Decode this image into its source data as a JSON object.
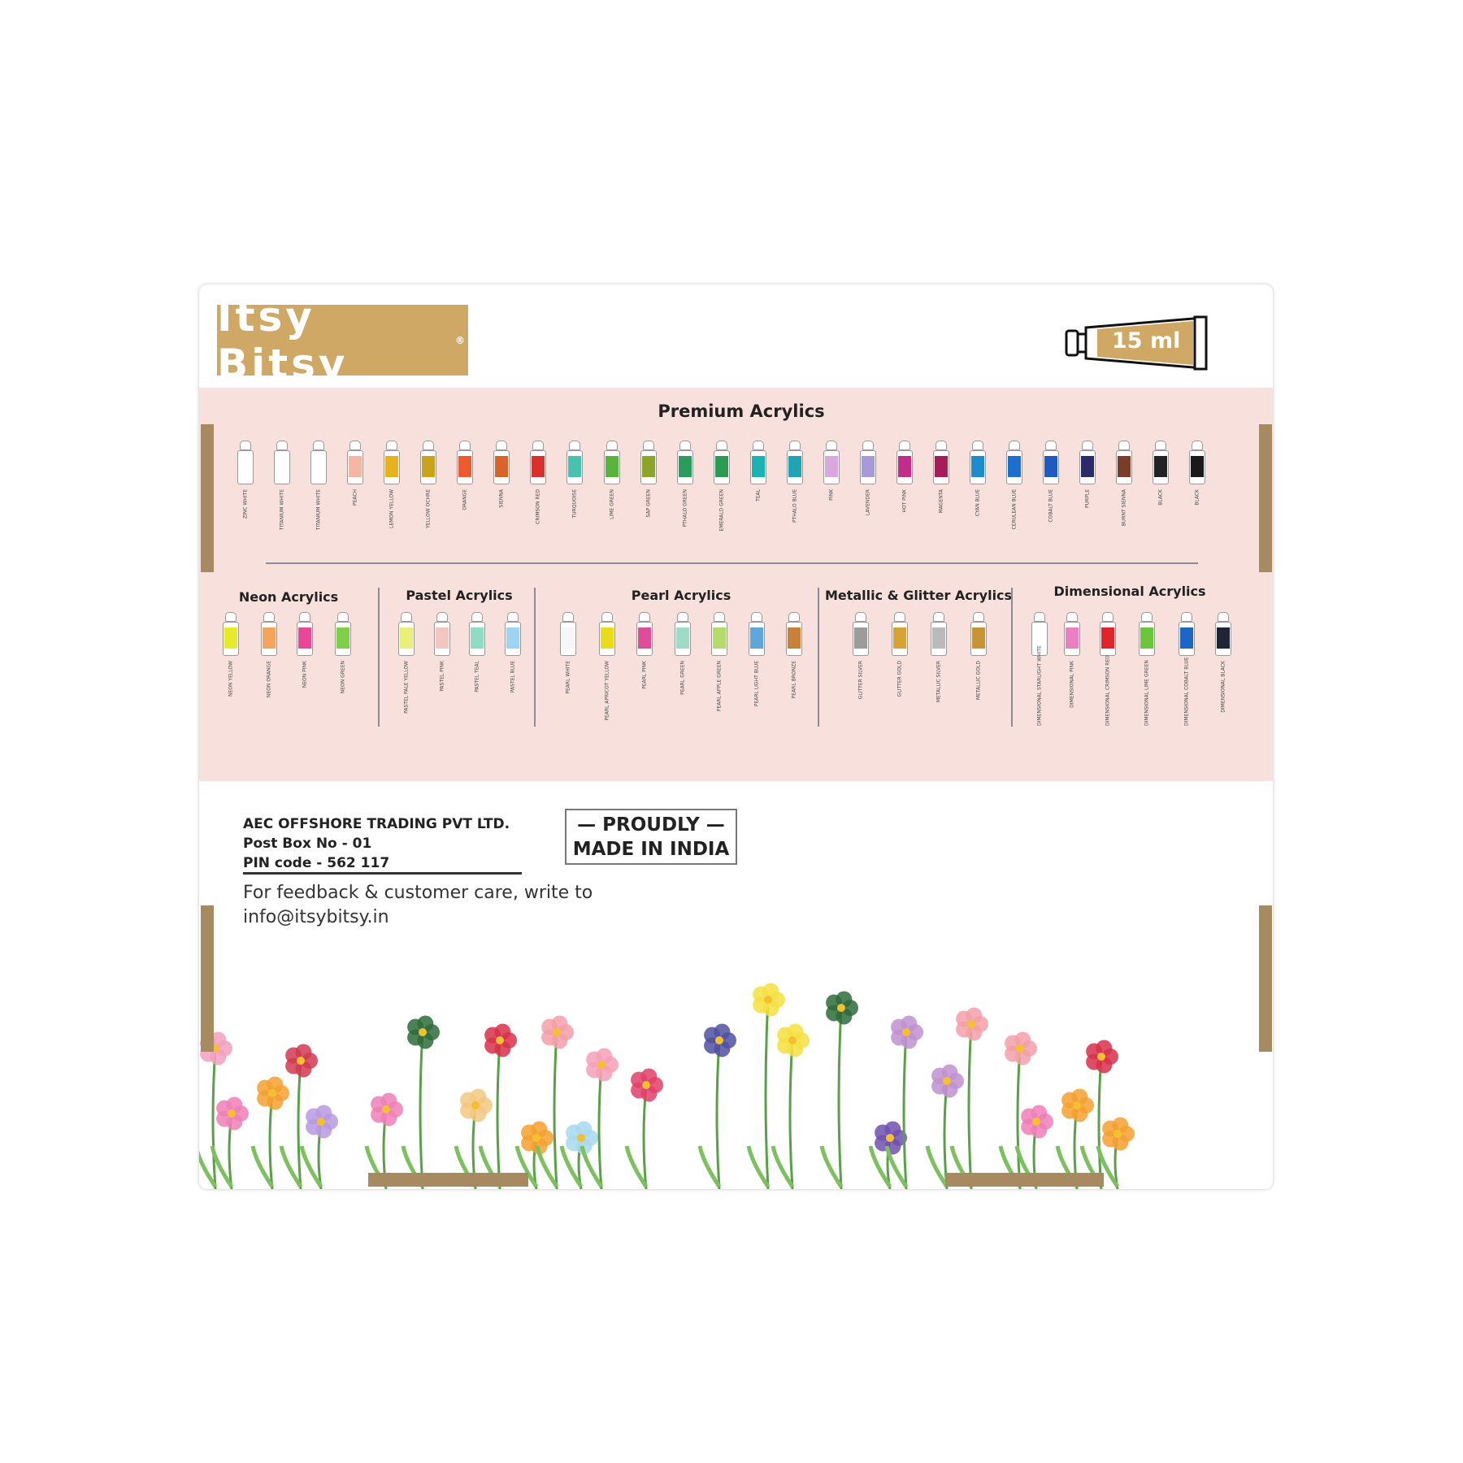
{
  "brand": {
    "logo_text": "Itsy Bitsy",
    "registered": "®",
    "volume": "15 ml",
    "logo_color": "#cfa865"
  },
  "premium": {
    "title": "Premium Acrylics",
    "tubes": [
      {
        "label": "ZINC WHITE",
        "color": "#ffffff"
      },
      {
        "label": "TITANIUM WHITE",
        "color": "#ffffff"
      },
      {
        "label": "TITANIUM WHITE",
        "color": "#ffffff"
      },
      {
        "label": "PEACH",
        "color": "#f4b7a3"
      },
      {
        "label": "LEMON YELLOW",
        "color": "#e8b21c"
      },
      {
        "label": "YELLOW OCHRE",
        "color": "#c9a21e"
      },
      {
        "label": "ORANGE",
        "color": "#ec5a2e"
      },
      {
        "label": "SIENNA",
        "color": "#d9642a"
      },
      {
        "label": "CRIMSON RED",
        "color": "#d9302c"
      },
      {
        "label": "TURQUOISE",
        "color": "#47c2ad"
      },
      {
        "label": "LIME GREEN",
        "color": "#58b43a"
      },
      {
        "label": "SAP GREEN",
        "color": "#8aa52a"
      },
      {
        "label": "PTHALO GREEN",
        "color": "#2a9d5c"
      },
      {
        "label": "EMERALD GREEN",
        "color": "#2c9a55"
      },
      {
        "label": "TEAL",
        "color": "#1ab2b2"
      },
      {
        "label": "PTHALO BLUE",
        "color": "#21a3b6"
      },
      {
        "label": "PINK",
        "color": "#d9a8dc"
      },
      {
        "label": "LAVENDER",
        "color": "#a79ad8"
      },
      {
        "label": "HOT PINK",
        "color": "#c22d8c"
      },
      {
        "label": "MAGENTA",
        "color": "#a51c59"
      },
      {
        "label": "CYAN BLUE",
        "color": "#1c8ccd"
      },
      {
        "label": "CERULEAN BLUE",
        "color": "#1b6fcf"
      },
      {
        "label": "COBALT BLUE",
        "color": "#1d5bbf"
      },
      {
        "label": "PURPLE",
        "color": "#2c2a6a"
      },
      {
        "label": "BURNT SIENNA",
        "color": "#7a3d2a"
      },
      {
        "label": "BLACK",
        "color": "#222222"
      },
      {
        "label": "BLACK",
        "color": "#1a1a1a"
      }
    ]
  },
  "sections": [
    {
      "title": "Neon Acrylics",
      "tubes": [
        {
          "label": "NEON YELLOW",
          "color": "#e6ea2a"
        },
        {
          "label": "NEON ORANGE",
          "color": "#f4a45c"
        },
        {
          "label": "NEON PINK",
          "color": "#e8479a"
        },
        {
          "label": "NEON GREEN",
          "color": "#7fd048"
        }
      ]
    },
    {
      "title": "Pastel Acrylics",
      "tubes": [
        {
          "label": "PASTEL PALE YELLOW",
          "color": "#e9f07a"
        },
        {
          "label": "PASTEL PINK",
          "color": "#f4c6c0"
        },
        {
          "label": "PASTEL TEAL",
          "color": "#8fdcc0"
        },
        {
          "label": "PASTEL BLUE",
          "color": "#9fd4f0"
        }
      ]
    },
    {
      "title": "Pearl Acrylics",
      "tubes": [
        {
          "label": "PEARL WHITE",
          "color": "#f6f6f6"
        },
        {
          "label": "PEARL APRICOT YELLOW",
          "color": "#eadc1a"
        },
        {
          "label": "PEARL PINK",
          "color": "#e04c9a"
        },
        {
          "label": "PEARL GREEN",
          "color": "#9edcc8"
        },
        {
          "label": "PEARL APPLE GREEN",
          "color": "#b4dc6a"
        },
        {
          "label": "PEARL LIGHT BLUE",
          "color": "#5fa6dc"
        },
        {
          "label": "PEARL BRONZE",
          "color": "#c9813a"
        }
      ]
    },
    {
      "title": "Metallic & Glitter Acrylics",
      "tubes": [
        {
          "label": "GLITTER SILVER",
          "color": "#9c9c98"
        },
        {
          "label": "GLITTER GOLD",
          "color": "#d6a336"
        },
        {
          "label": "METALLIC SILVER",
          "color": "#b8bbb8"
        },
        {
          "label": "METALLIC GOLD",
          "color": "#c79434"
        }
      ]
    },
    {
      "title": "Dimensional Acrylics",
      "tubes": [
        {
          "label": "DIMENSIONAL STARLIGHT WHITE",
          "color": "#ffffff"
        },
        {
          "label": "DIMENSIONAL PINK",
          "color": "#ea7fc4"
        },
        {
          "label": "DIMENSIONAL CRIMSON RED",
          "color": "#e0242a"
        },
        {
          "label": "DIMENSIONAL LIME GREEN",
          "color": "#6cc63a"
        },
        {
          "label": "DIMENSIONAL COBALT BLUE",
          "color": "#1e66c6"
        },
        {
          "label": "DIMENSIONAL BLACK",
          "color": "#1e2636"
        }
      ]
    }
  ],
  "footer": {
    "company": "AEC OFFSHORE TRADING PVT LTD.",
    "post_box": "Post Box No - 01",
    "pin": "PIN code - 562 117",
    "feedback": "For feedback & customer care, write to",
    "email": "info@itsybitsy.in",
    "proudly": "— PROUDLY —",
    "made_in": "MADE IN INDIA"
  }
}
